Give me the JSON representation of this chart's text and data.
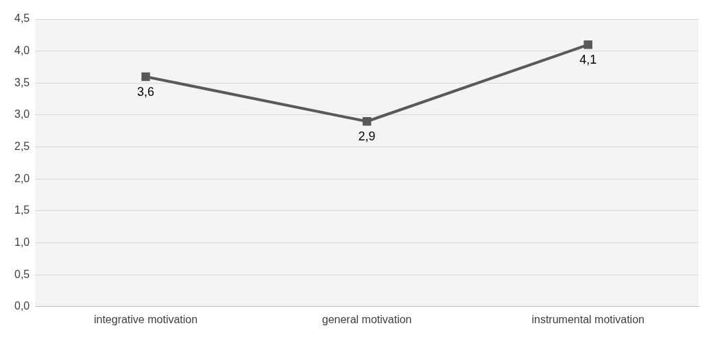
{
  "chart_data": {
    "type": "line",
    "categories": [
      "integrative motivation",
      "general motivation",
      "instrumental motivation"
    ],
    "series": [
      {
        "color": "#595959",
        "values": [
          3.6,
          2.9,
          4.1
        ],
        "value_labels": [
          "3,6",
          "2,9",
          "4,1"
        ]
      }
    ],
    "ylim": [
      0,
      4.5
    ],
    "yticks": [
      {
        "value": 0,
        "label": "0,0"
      },
      {
        "value": 0.5,
        "label": "0,5"
      },
      {
        "value": 1,
        "label": "1,0"
      },
      {
        "value": 1.5,
        "label": "1,5"
      },
      {
        "value": 2,
        "label": "2,0"
      },
      {
        "value": 2.5,
        "label": "2,5"
      },
      {
        "value": 3,
        "label": "3,0"
      },
      {
        "value": 3.5,
        "label": "3,5"
      },
      {
        "value": 4,
        "label": "4,0"
      },
      {
        "value": 4.5,
        "label": "4,5"
      }
    ],
    "grid": "y",
    "legend": false,
    "marker": "square",
    "line_style": "solid"
  }
}
